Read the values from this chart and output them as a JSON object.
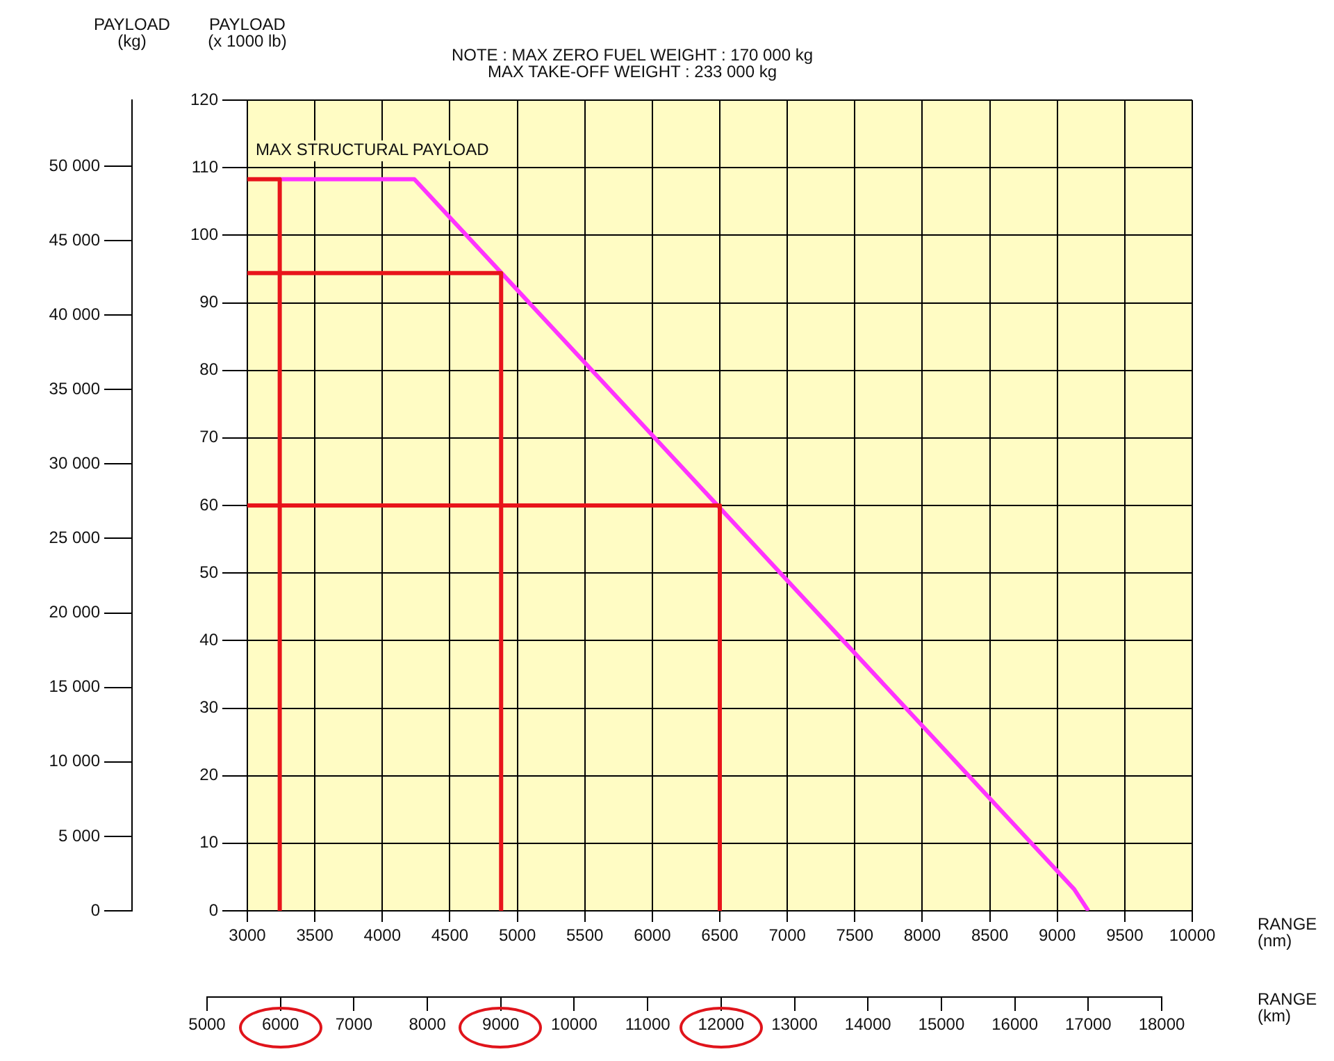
{
  "chart_data": {
    "type": "line",
    "ylabel": "PAYLOAD\n(x 1000 lb)",
    "y2label": "PAYLOAD\n(kg)",
    "xlabel": "RANGE\n(nm)",
    "x2label": "RANGE\n(km)",
    "annotations": [
      "NOTE : MAX ZERO FUEL WEIGHT : 170 000 kg",
      "MAX TAKE-OFF WEIGHT : 233 000 kg",
      "MAX STRUCTURAL PAYLOAD"
    ],
    "xlim": [
      3000,
      10000
    ],
    "xticks": [
      3000,
      3500,
      4000,
      4500,
      5000,
      5500,
      6000,
      6500,
      7000,
      7500,
      8000,
      8500,
      9000,
      9500,
      10000
    ],
    "ylim": [
      0,
      120
    ],
    "yticks": [
      0,
      10,
      20,
      30,
      40,
      50,
      60,
      70,
      80,
      90,
      100,
      110,
      120
    ],
    "y2lim": [
      0,
      54431
    ],
    "y2ticks": [
      {
        "value": 0,
        "label": "0"
      },
      {
        "value": 5000,
        "label": "5 000"
      },
      {
        "value": 10000,
        "label": "10 000"
      },
      {
        "value": 15000,
        "label": "15 000"
      },
      {
        "value": 20000,
        "label": "20 000"
      },
      {
        "value": 25000,
        "label": "25 000"
      },
      {
        "value": 30000,
        "label": "30 000"
      },
      {
        "value": 35000,
        "label": "35 000"
      },
      {
        "value": 40000,
        "label": "40 000"
      },
      {
        "value": 45000,
        "label": "45 000"
      },
      {
        "value": 50000,
        "label": "50 000"
      }
    ],
    "x2lim": [
      5000,
      18000
    ],
    "x2ticks": [
      5000,
      6000,
      7000,
      8000,
      9000,
      10000,
      11000,
      12000,
      13000,
      14000,
      15000,
      16000,
      17000,
      18000
    ],
    "grid": true,
    "marker": "none",
    "line_style": "solid",
    "series": [
      {
        "color": "#ff33ff",
        "x": [
          3240,
          4237,
          9125,
          9230
        ],
        "values": [
          108.3,
          108.3,
          3.2,
          0
        ]
      },
      {
        "color": "#e8141b",
        "x": [
          3000,
          3240,
          3240
        ],
        "values": [
          108.3,
          108.3,
          0
        ]
      },
      {
        "color": "#e8141b",
        "x": [
          3000,
          4880,
          4880
        ],
        "values": [
          94.4,
          94.4,
          0
        ]
      },
      {
        "color": "#e8141b",
        "x": [
          3000,
          6500,
          6500
        ],
        "values": [
          60,
          60,
          0
        ]
      }
    ]
  }
}
